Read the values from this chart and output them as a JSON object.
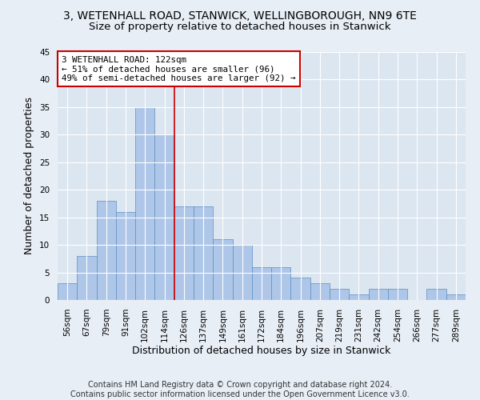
{
  "title_line1": "3, WETENHALL ROAD, STANWICK, WELLINGBOROUGH, NN9 6TE",
  "title_line2": "Size of property relative to detached houses in Stanwick",
  "xlabel": "Distribution of detached houses by size in Stanwick",
  "ylabel": "Number of detached properties",
  "bar_labels": [
    "56sqm",
    "67sqm",
    "79sqm",
    "91sqm",
    "102sqm",
    "114sqm",
    "126sqm",
    "137sqm",
    "149sqm",
    "161sqm",
    "172sqm",
    "184sqm",
    "196sqm",
    "207sqm",
    "219sqm",
    "231sqm",
    "242sqm",
    "254sqm",
    "266sqm",
    "277sqm",
    "289sqm"
  ],
  "bar_values": [
    3,
    8,
    18,
    16,
    35,
    30,
    17,
    17,
    11,
    10,
    6,
    6,
    4,
    3,
    2,
    1,
    2,
    2,
    0,
    2,
    1
  ],
  "bar_color": "#aec6e8",
  "bar_edge_color": "#5a8fc2",
  "ylim": [
    0,
    45
  ],
  "yticks": [
    0,
    5,
    10,
    15,
    20,
    25,
    30,
    35,
    40,
    45
  ],
  "vline_x_index": 5.5,
  "vline_color": "#cc0000",
  "annotation_text": "3 WETENHALL ROAD: 122sqm\n← 51% of detached houses are smaller (96)\n49% of semi-detached houses are larger (92) →",
  "annotation_box_color": "#cc0000",
  "annotation_bg": "#ffffff",
  "footnote": "Contains HM Land Registry data © Crown copyright and database right 2024.\nContains public sector information licensed under the Open Government Licence v3.0.",
  "bg_color": "#e8eef5",
  "plot_bg_color": "#dce6f0",
  "grid_color": "#ffffff",
  "title_fontsize": 10,
  "subtitle_fontsize": 9.5,
  "tick_fontsize": 7.5,
  "label_fontsize": 9,
  "footnote_fontsize": 7
}
